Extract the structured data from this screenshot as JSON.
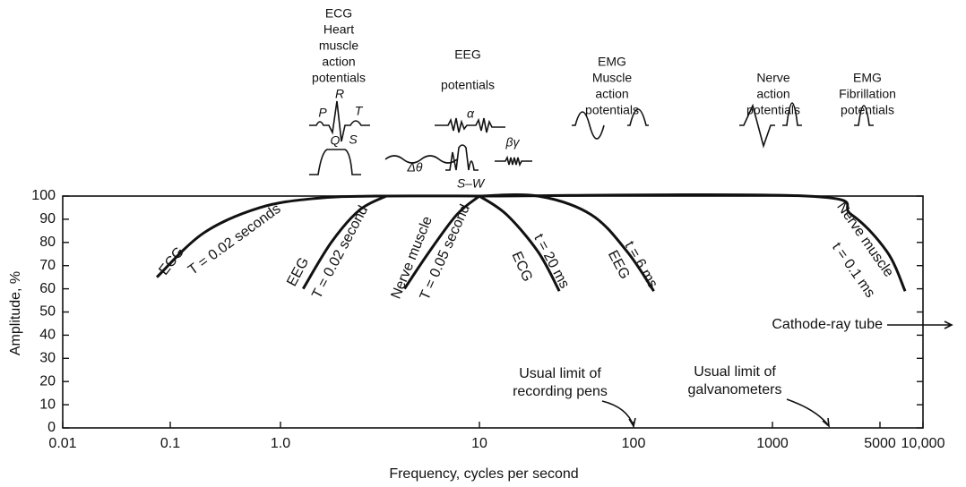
{
  "chart_data": {
    "type": "line",
    "xlabel": "Frequency, cycles per second",
    "ylabel": "Amplitude, %",
    "log_x": true,
    "color": "#111111",
    "xlim": [
      0.01,
      10000
    ],
    "xticks": [
      0.01,
      0.1,
      {
        "value": 1,
        "label": "1.0"
      },
      10,
      100,
      1000,
      5000,
      {
        "value": 10000,
        "label": "10,000"
      }
    ],
    "ylim": [
      0,
      100
    ],
    "yticks": [
      0,
      10,
      20,
      30,
      40,
      50,
      60,
      70,
      80,
      90,
      100
    ],
    "series": [
      {
        "label": "ECG",
        "sublabel": "T = 0.02 seconds",
        "x": [
          0.075,
          0.2,
          0.65,
          1.5,
          3,
          10
        ],
        "values": [
          65,
          84,
          95,
          99,
          100,
          100
        ]
      },
      {
        "label": "EEG",
        "sublabel": "T = 0.02 second",
        "x": [
          1.3,
          1.8,
          2.5,
          3.4
        ],
        "values": [
          60,
          80,
          94,
          100
        ]
      },
      {
        "label": "Nerve muscle",
        "sublabel": "T = 0.05 second",
        "x": [
          4.2,
          5.6,
          7.7,
          10
        ],
        "values": [
          60,
          76,
          92,
          100
        ]
      },
      {
        "label": "ECG",
        "sublabel": "t = 20 ms",
        "x": [
          10,
          15,
          24,
          33
        ],
        "values": [
          100,
          92,
          76,
          59
        ]
      },
      {
        "label": "EEG",
        "sublabel": "t = 6 ms",
        "x": [
          10,
          24,
          53,
          91,
          140
        ],
        "values": [
          100,
          100,
          92,
          76,
          59
        ]
      },
      {
        "label": "Nerve muscle",
        "sublabel": "t = 0.1 ms",
        "x": [
          10,
          1660,
          3260,
          5600,
          7500
        ],
        "values": [
          100,
          100,
          92,
          76,
          59
        ]
      }
    ],
    "annotations": [
      {
        "lines": [
          "Cathode-ray tube"
        ]
      },
      {
        "lines": [
          "Usual limit of",
          "recording pens"
        ]
      },
      {
        "lines": [
          "Usual limit of",
          "galvanometers"
        ]
      }
    ]
  },
  "signals": [
    {
      "lines": [
        "ECG",
        "Heart",
        "muscle",
        "action",
        "potentials"
      ],
      "waves": [
        "P",
        "R",
        "T",
        "Q",
        "S"
      ]
    },
    {
      "lines": [
        "EEG",
        "potentials"
      ],
      "waves": [
        "α",
        "Δθ",
        "S–W",
        "βγ"
      ]
    },
    {
      "lines": [
        "EMG",
        "Muscle",
        "action",
        "potentials"
      ]
    },
    {
      "lines": [
        "Nerve",
        "action",
        "potentials"
      ]
    },
    {
      "lines": [
        "EMG",
        "Fibrillation",
        "potentials"
      ]
    }
  ]
}
